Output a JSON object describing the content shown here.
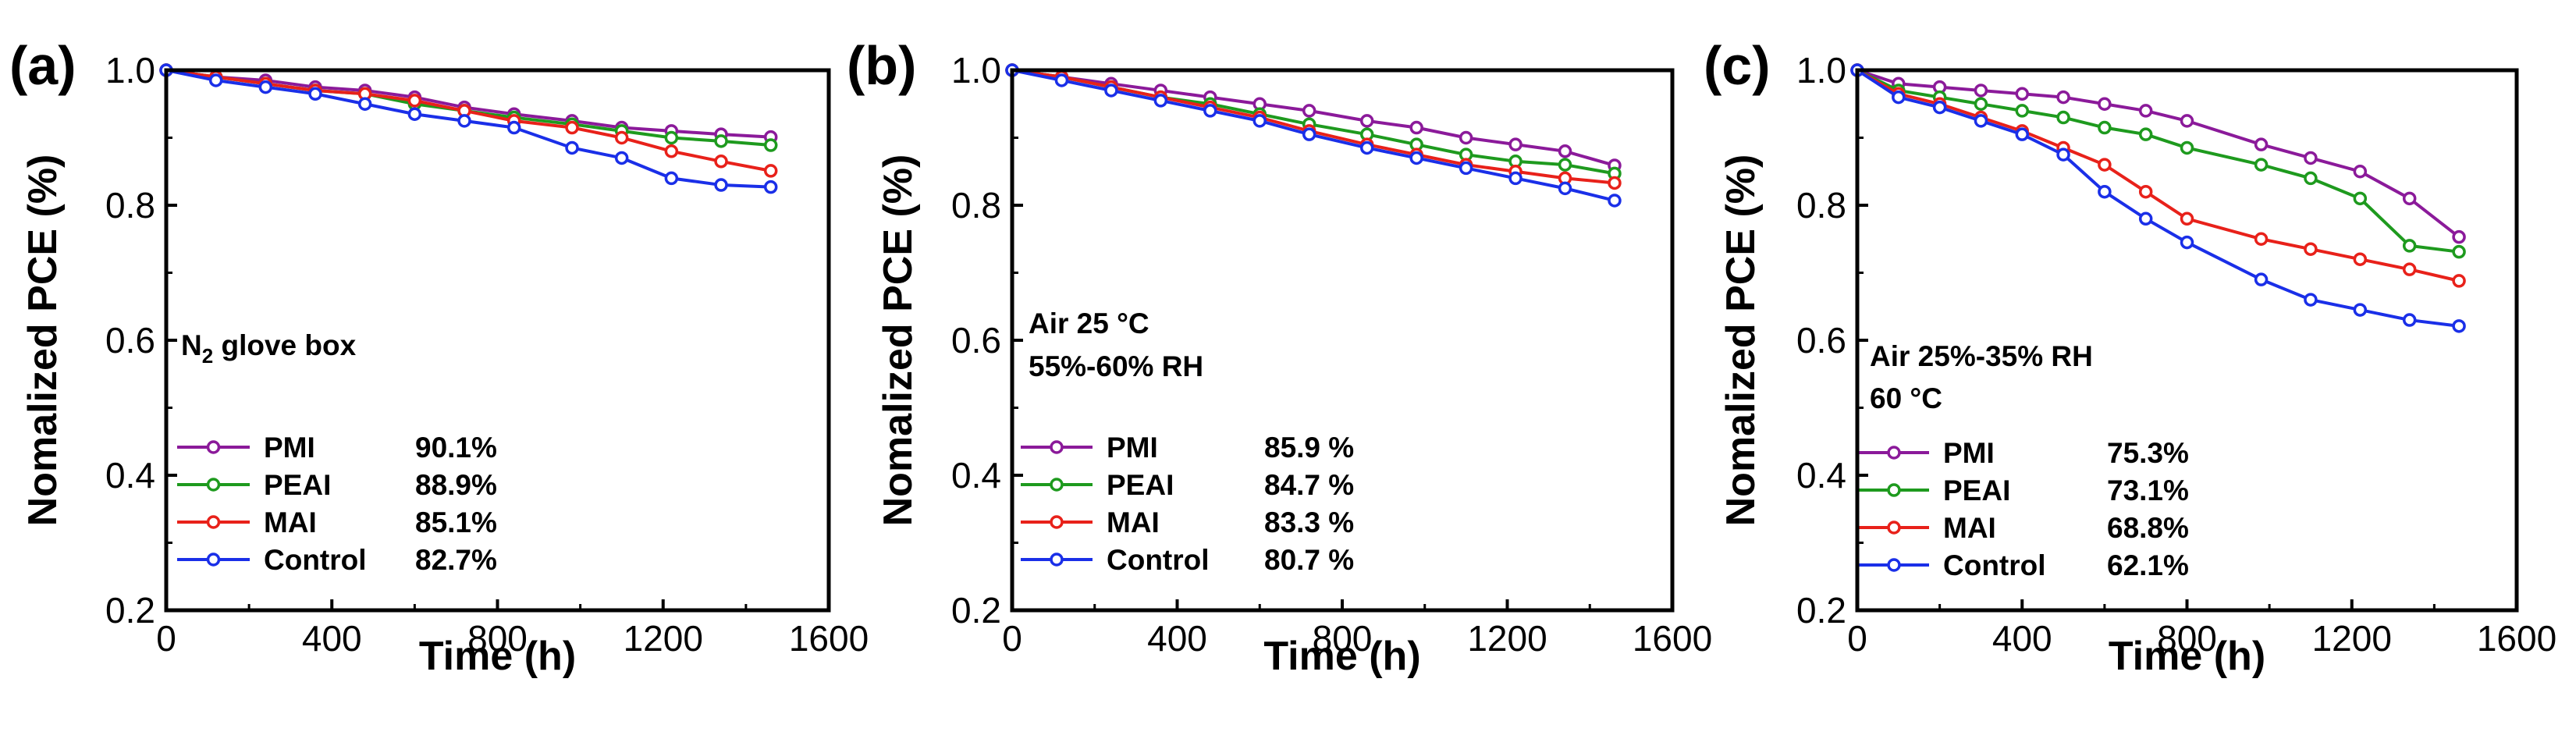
{
  "chart_data": [
    {
      "type": "line",
      "panel_label": "(a)",
      "xlabel": "Time (h)",
      "ylabel": "Nomalized PCE (%)",
      "xlim": [
        0,
        1600
      ],
      "ylim": [
        0.2,
        1.0
      ],
      "xticks": [
        "0",
        "400",
        "800",
        "1200",
        "1600"
      ],
      "yticks": [
        "0.2",
        "0.4",
        "0.6",
        "0.8",
        "1.0"
      ],
      "annotation": {
        "main": "N",
        "sub": "2",
        "rest": " glove box"
      },
      "x": [
        0,
        120,
        240,
        360,
        480,
        600,
        720,
        840,
        980,
        1100,
        1220,
        1340,
        1460
      ],
      "series": [
        {
          "name": "PMI",
          "color": "#8B1A9A",
          "retention": "90.1%",
          "values": [
            1.0,
            0.99,
            0.985,
            0.975,
            0.97,
            0.96,
            0.945,
            0.935,
            0.925,
            0.915,
            0.91,
            0.905,
            0.901
          ]
        },
        {
          "name": "PEAI",
          "color": "#1E9A1E",
          "retention": "88.9%",
          "values": [
            1.0,
            0.99,
            0.98,
            0.97,
            0.965,
            0.95,
            0.94,
            0.93,
            0.92,
            0.91,
            0.9,
            0.895,
            0.889
          ]
        },
        {
          "name": "MAI",
          "color": "#E8211A",
          "retention": "85.1%",
          "values": [
            1.0,
            0.99,
            0.98,
            0.97,
            0.965,
            0.955,
            0.94,
            0.925,
            0.915,
            0.9,
            0.88,
            0.865,
            0.851
          ]
        },
        {
          "name": "Control",
          "color": "#1A2FE8",
          "retention": "82.7%",
          "values": [
            1.0,
            0.985,
            0.975,
            0.965,
            0.95,
            0.935,
            0.925,
            0.915,
            0.885,
            0.87,
            0.84,
            0.83,
            0.827
          ]
        }
      ]
    },
    {
      "type": "line",
      "panel_label": "(b)",
      "xlabel": "Time (h)",
      "ylabel": "Nomalized PCE (%)",
      "xlim": [
        0,
        1600
      ],
      "ylim": [
        0.2,
        1.0
      ],
      "xticks": [
        "0",
        "400",
        "800",
        "1200",
        "1600"
      ],
      "yticks": [
        "0.2",
        "0.4",
        "0.6",
        "0.8",
        "1.0"
      ],
      "annotation": {
        "line1": "Air 25 °C",
        "line2": "55%-60% RH"
      },
      "x": [
        0,
        120,
        240,
        360,
        480,
        600,
        720,
        860,
        980,
        1100,
        1220,
        1340,
        1460
      ],
      "series": [
        {
          "name": "PMI",
          "color": "#8B1A9A",
          "retention": "85.9 %",
          "values": [
            1.0,
            0.99,
            0.98,
            0.97,
            0.96,
            0.95,
            0.94,
            0.925,
            0.915,
            0.9,
            0.89,
            0.88,
            0.859
          ]
        },
        {
          "name": "PEAI",
          "color": "#1E9A1E",
          "retention": "84.7 %",
          "values": [
            1.0,
            0.99,
            0.975,
            0.96,
            0.95,
            0.935,
            0.92,
            0.905,
            0.89,
            0.875,
            0.865,
            0.86,
            0.847
          ]
        },
        {
          "name": "MAI",
          "color": "#E8211A",
          "retention": "83.3 %",
          "values": [
            1.0,
            0.99,
            0.975,
            0.96,
            0.945,
            0.93,
            0.91,
            0.89,
            0.875,
            0.86,
            0.85,
            0.84,
            0.833
          ]
        },
        {
          "name": "Control",
          "color": "#1A2FE8",
          "retention": "80.7 %",
          "values": [
            1.0,
            0.985,
            0.97,
            0.955,
            0.94,
            0.925,
            0.905,
            0.885,
            0.87,
            0.855,
            0.84,
            0.825,
            0.807
          ]
        }
      ]
    },
    {
      "type": "line",
      "panel_label": "(c)",
      "xlabel": "Time (h)",
      "ylabel": "Nomalized PCE (%)",
      "xlim": [
        0,
        1600
      ],
      "ylim": [
        0.2,
        1.0
      ],
      "xticks": [
        "0",
        "400",
        "800",
        "1200",
        "1600"
      ],
      "yticks": [
        "0.2",
        "0.4",
        "0.6",
        "0.8",
        "1.0"
      ],
      "annotation": {
        "line1": "Air 25%-35% RH",
        "line2": "60 °C"
      },
      "x": [
        0,
        100,
        200,
        300,
        400,
        500,
        600,
        700,
        800,
        980,
        1100,
        1220,
        1340,
        1460
      ],
      "series": [
        {
          "name": "PMI",
          "color": "#8B1A9A",
          "retention": "75.3%",
          "values": [
            1.0,
            0.98,
            0.975,
            0.97,
            0.965,
            0.96,
            0.95,
            0.94,
            0.925,
            0.89,
            0.87,
            0.85,
            0.81,
            0.753
          ]
        },
        {
          "name": "PEAI",
          "color": "#1E9A1E",
          "retention": "73.1%",
          "values": [
            1.0,
            0.97,
            0.96,
            0.95,
            0.94,
            0.93,
            0.915,
            0.905,
            0.885,
            0.86,
            0.84,
            0.81,
            0.74,
            0.731
          ]
        },
        {
          "name": "MAI",
          "color": "#E8211A",
          "retention": "68.8%",
          "values": [
            1.0,
            0.965,
            0.95,
            0.93,
            0.91,
            0.885,
            0.86,
            0.82,
            0.78,
            0.75,
            0.735,
            0.72,
            0.705,
            0.688
          ]
        },
        {
          "name": "Control",
          "color": "#1A2FE8",
          "retention": "62.1%",
          "values": [
            1.0,
            0.96,
            0.945,
            0.925,
            0.905,
            0.875,
            0.82,
            0.78,
            0.745,
            0.69,
            0.66,
            0.645,
            0.63,
            0.621
          ]
        }
      ]
    }
  ]
}
